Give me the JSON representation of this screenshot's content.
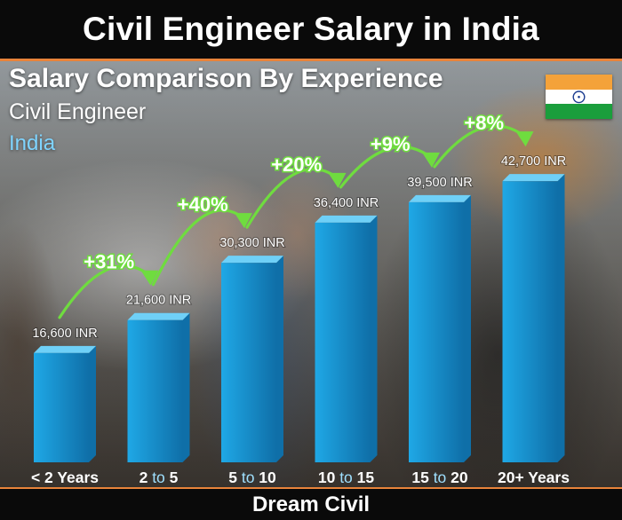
{
  "header": {
    "title": "Civil Engineer Salary in India"
  },
  "footer": {
    "source": "Dream Civil"
  },
  "flag": {
    "name": "india-flag",
    "colors": [
      "#f4a23a",
      "#ffffff",
      "#1a9e3c"
    ],
    "chakra_color": "#1a3b8f"
  },
  "colors": {
    "bar_front": "#1fa8e6",
    "bar_side": "#0f6fa8",
    "bar_top": "#6fd0f7",
    "arrow": "#6fdc3f",
    "change_label": "#ffffff",
    "axis_label": "#ffffff"
  },
  "chart_data": {
    "type": "bar",
    "title": "Salary Comparison By Experience",
    "subtitle": "Civil Engineer",
    "region": "India",
    "xlabel": "",
    "ylabel": "",
    "unit": "INR",
    "ylim": [
      0,
      50000
    ],
    "grid": false,
    "categories": [
      {
        "parts": [
          "< 2 Years"
        ]
      },
      {
        "parts": [
          "2",
          " to ",
          "5"
        ]
      },
      {
        "parts": [
          "5",
          " to ",
          "10"
        ]
      },
      {
        "parts": [
          "10",
          " to ",
          "15"
        ]
      },
      {
        "parts": [
          "15",
          " to ",
          "20"
        ]
      },
      {
        "parts": [
          "20+ Years"
        ]
      }
    ],
    "values": [
      16600,
      21600,
      30300,
      36400,
      39500,
      42700
    ],
    "value_labels": [
      "16,600 INR",
      "21,600 INR",
      "30,300 INR",
      "36,400 INR",
      "39,500 INR",
      "42,700 INR"
    ],
    "changes": [
      "+31%",
      "+40%",
      "+20%",
      "+9%",
      "+8%"
    ]
  }
}
